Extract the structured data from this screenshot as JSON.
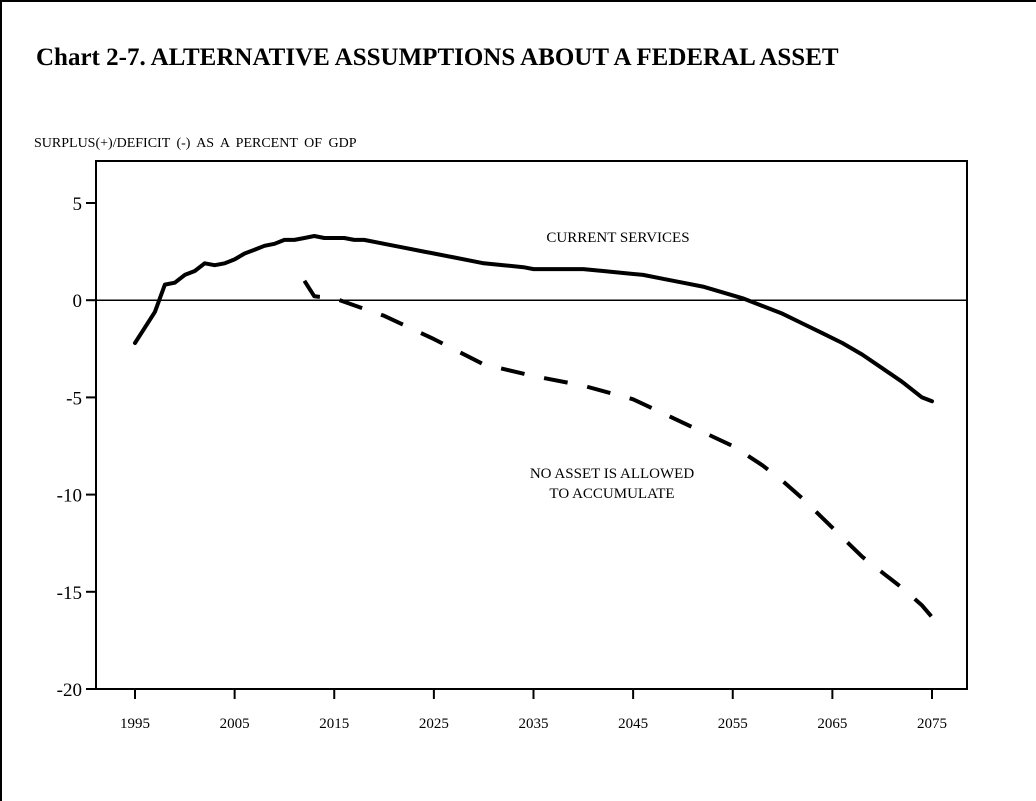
{
  "chart_data": {
    "type": "line",
    "title": "Chart 2-7. ALTERNATIVE ASSUMPTIONS ABOUT A FEDERAL ASSET",
    "ylabel": "SURPLUS(+)/DEFICIT (-) AS A PERCENT OF GDP",
    "xlabel": "",
    "xlim": [
      1995,
      2075
    ],
    "ylim": [
      -20,
      5
    ],
    "x_ticks": [
      1995,
      2005,
      2015,
      2025,
      2035,
      2045,
      2055,
      2065,
      2075
    ],
    "y_ticks": [
      5,
      0,
      -5,
      -10,
      -15,
      -20
    ],
    "zero_line": true,
    "grid": false,
    "annotations": [
      {
        "text": "CURRENT SERVICES",
        "series": 0
      },
      {
        "text": "NO ASSET IS ALLOWED",
        "series": 1
      },
      {
        "text": "TO ACCUMULATE",
        "series": 1
      }
    ],
    "series": [
      {
        "style": "solid",
        "x": [
          1995,
          1997,
          1998,
          1999,
          2000,
          2001,
          2002,
          2003,
          2004,
          2005,
          2006,
          2007,
          2008,
          2009,
          2010,
          2011,
          2012,
          2013,
          2014,
          2015,
          2016,
          2017,
          2018,
          2020,
          2022,
          2024,
          2025,
          2027,
          2029,
          2030,
          2032,
          2034,
          2035,
          2040,
          2042,
          2044,
          2046,
          2048,
          2050,
          2052,
          2054,
          2056,
          2058,
          2060,
          2062,
          2064,
          2066,
          2068,
          2070,
          2072,
          2074,
          2075
        ],
        "y": [
          -2.2,
          -0.6,
          0.8,
          0.9,
          1.3,
          1.5,
          1.9,
          1.8,
          1.9,
          2.1,
          2.4,
          2.6,
          2.8,
          2.9,
          3.1,
          3.1,
          3.2,
          3.3,
          3.2,
          3.2,
          3.2,
          3.1,
          3.1,
          2.9,
          2.7,
          2.5,
          2.4,
          2.2,
          2.0,
          1.9,
          1.8,
          1.7,
          1.6,
          1.6,
          1.5,
          1.4,
          1.3,
          1.1,
          0.9,
          0.7,
          0.4,
          0.1,
          -0.3,
          -0.7,
          -1.2,
          -1.7,
          -2.2,
          -2.8,
          -3.5,
          -4.2,
          -5.0,
          -5.2
        ]
      },
      {
        "style": "dashed",
        "x": [
          2012,
          2013,
          2015,
          2020,
          2025,
          2030,
          2035,
          2040,
          2045,
          2050,
          2055,
          2058,
          2060,
          2062,
          2064,
          2066,
          2068,
          2070,
          2072,
          2074,
          2075
        ],
        "y": [
          1.0,
          0.2,
          0.1,
          -0.8,
          -2.0,
          -3.3,
          -3.9,
          -4.4,
          -5.1,
          -6.3,
          -7.5,
          -8.5,
          -9.3,
          -10.2,
          -11.2,
          -12.2,
          -13.2,
          -14.0,
          -14.8,
          -15.7,
          -16.3
        ]
      }
    ]
  }
}
